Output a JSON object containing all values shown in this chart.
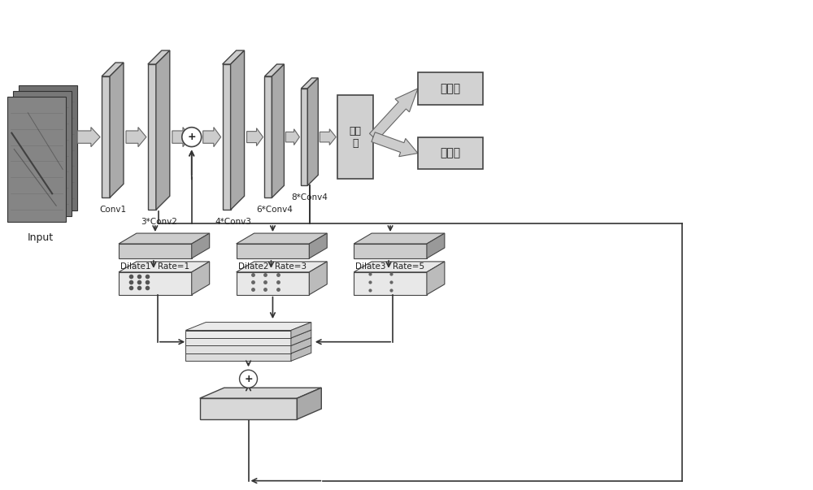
{
  "bg_color": "#ffffff",
  "input_label": "Input",
  "conv_labels": [
    "Conv1",
    "3*Conv2",
    "4*Conv3",
    "6*Conv4",
    "8*Conv4"
  ],
  "classifier_label": "分类\n器",
  "output_labels": [
    "有裂缝",
    "无裂缝"
  ],
  "dilate_labels": [
    "Dilate1",
    "Dilate2",
    "Dilate3"
  ],
  "rate_labels": [
    "Rate=1",
    "Rate=3",
    "Rate=5"
  ],
  "face_color": "#cccccc",
  "face_color2": "#e0e0e0",
  "side_color": "#aaaaaa",
  "edge_color": "#444444",
  "line_color": "#333333",
  "box_color": "#d2d2d2"
}
